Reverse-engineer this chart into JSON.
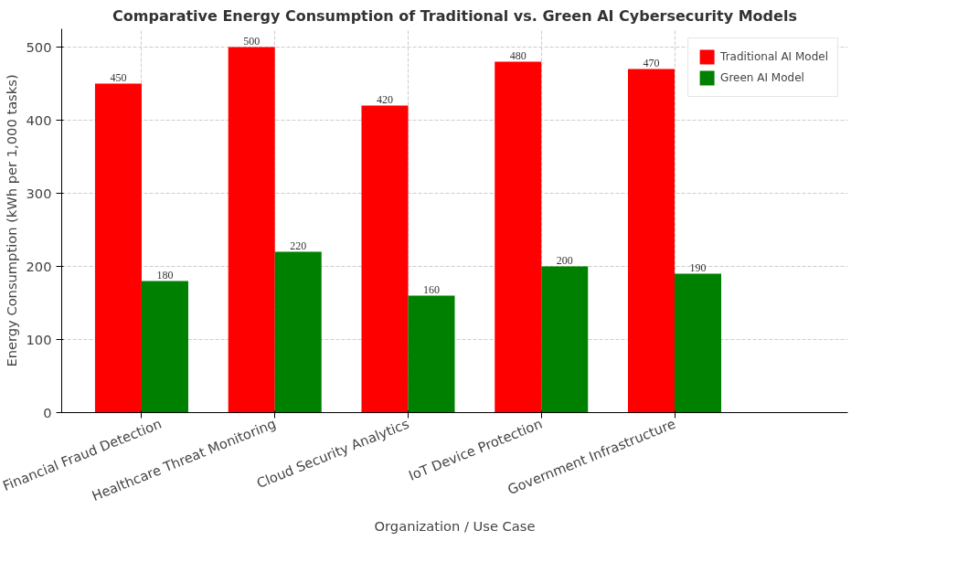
{
  "chart_data": {
    "type": "bar",
    "title": "Comparative Energy Consumption of Traditional vs. Green AI Cybersecurity Models",
    "xlabel": "Organization / Use Case",
    "ylabel": "Energy Consumption (kWh per 1,000 tasks)",
    "categories": [
      "Financial Fraud Detection",
      "Healthcare Threat Monitoring",
      "Cloud Security Analytics",
      "IoT Device Protection",
      "Government Infrastructure"
    ],
    "series": [
      {
        "name": "Traditional AI Model",
        "color": "#ff0000",
        "values": [
          450,
          500,
          420,
          480,
          470
        ]
      },
      {
        "name": "Green AI Model",
        "color": "#008000",
        "values": [
          180,
          220,
          160,
          200,
          190
        ]
      }
    ],
    "ylim": [
      0,
      525
    ],
    "yticks": [
      0,
      100,
      200,
      300,
      400,
      500
    ],
    "grid": true,
    "legend": "top right",
    "data_labels": true
  }
}
